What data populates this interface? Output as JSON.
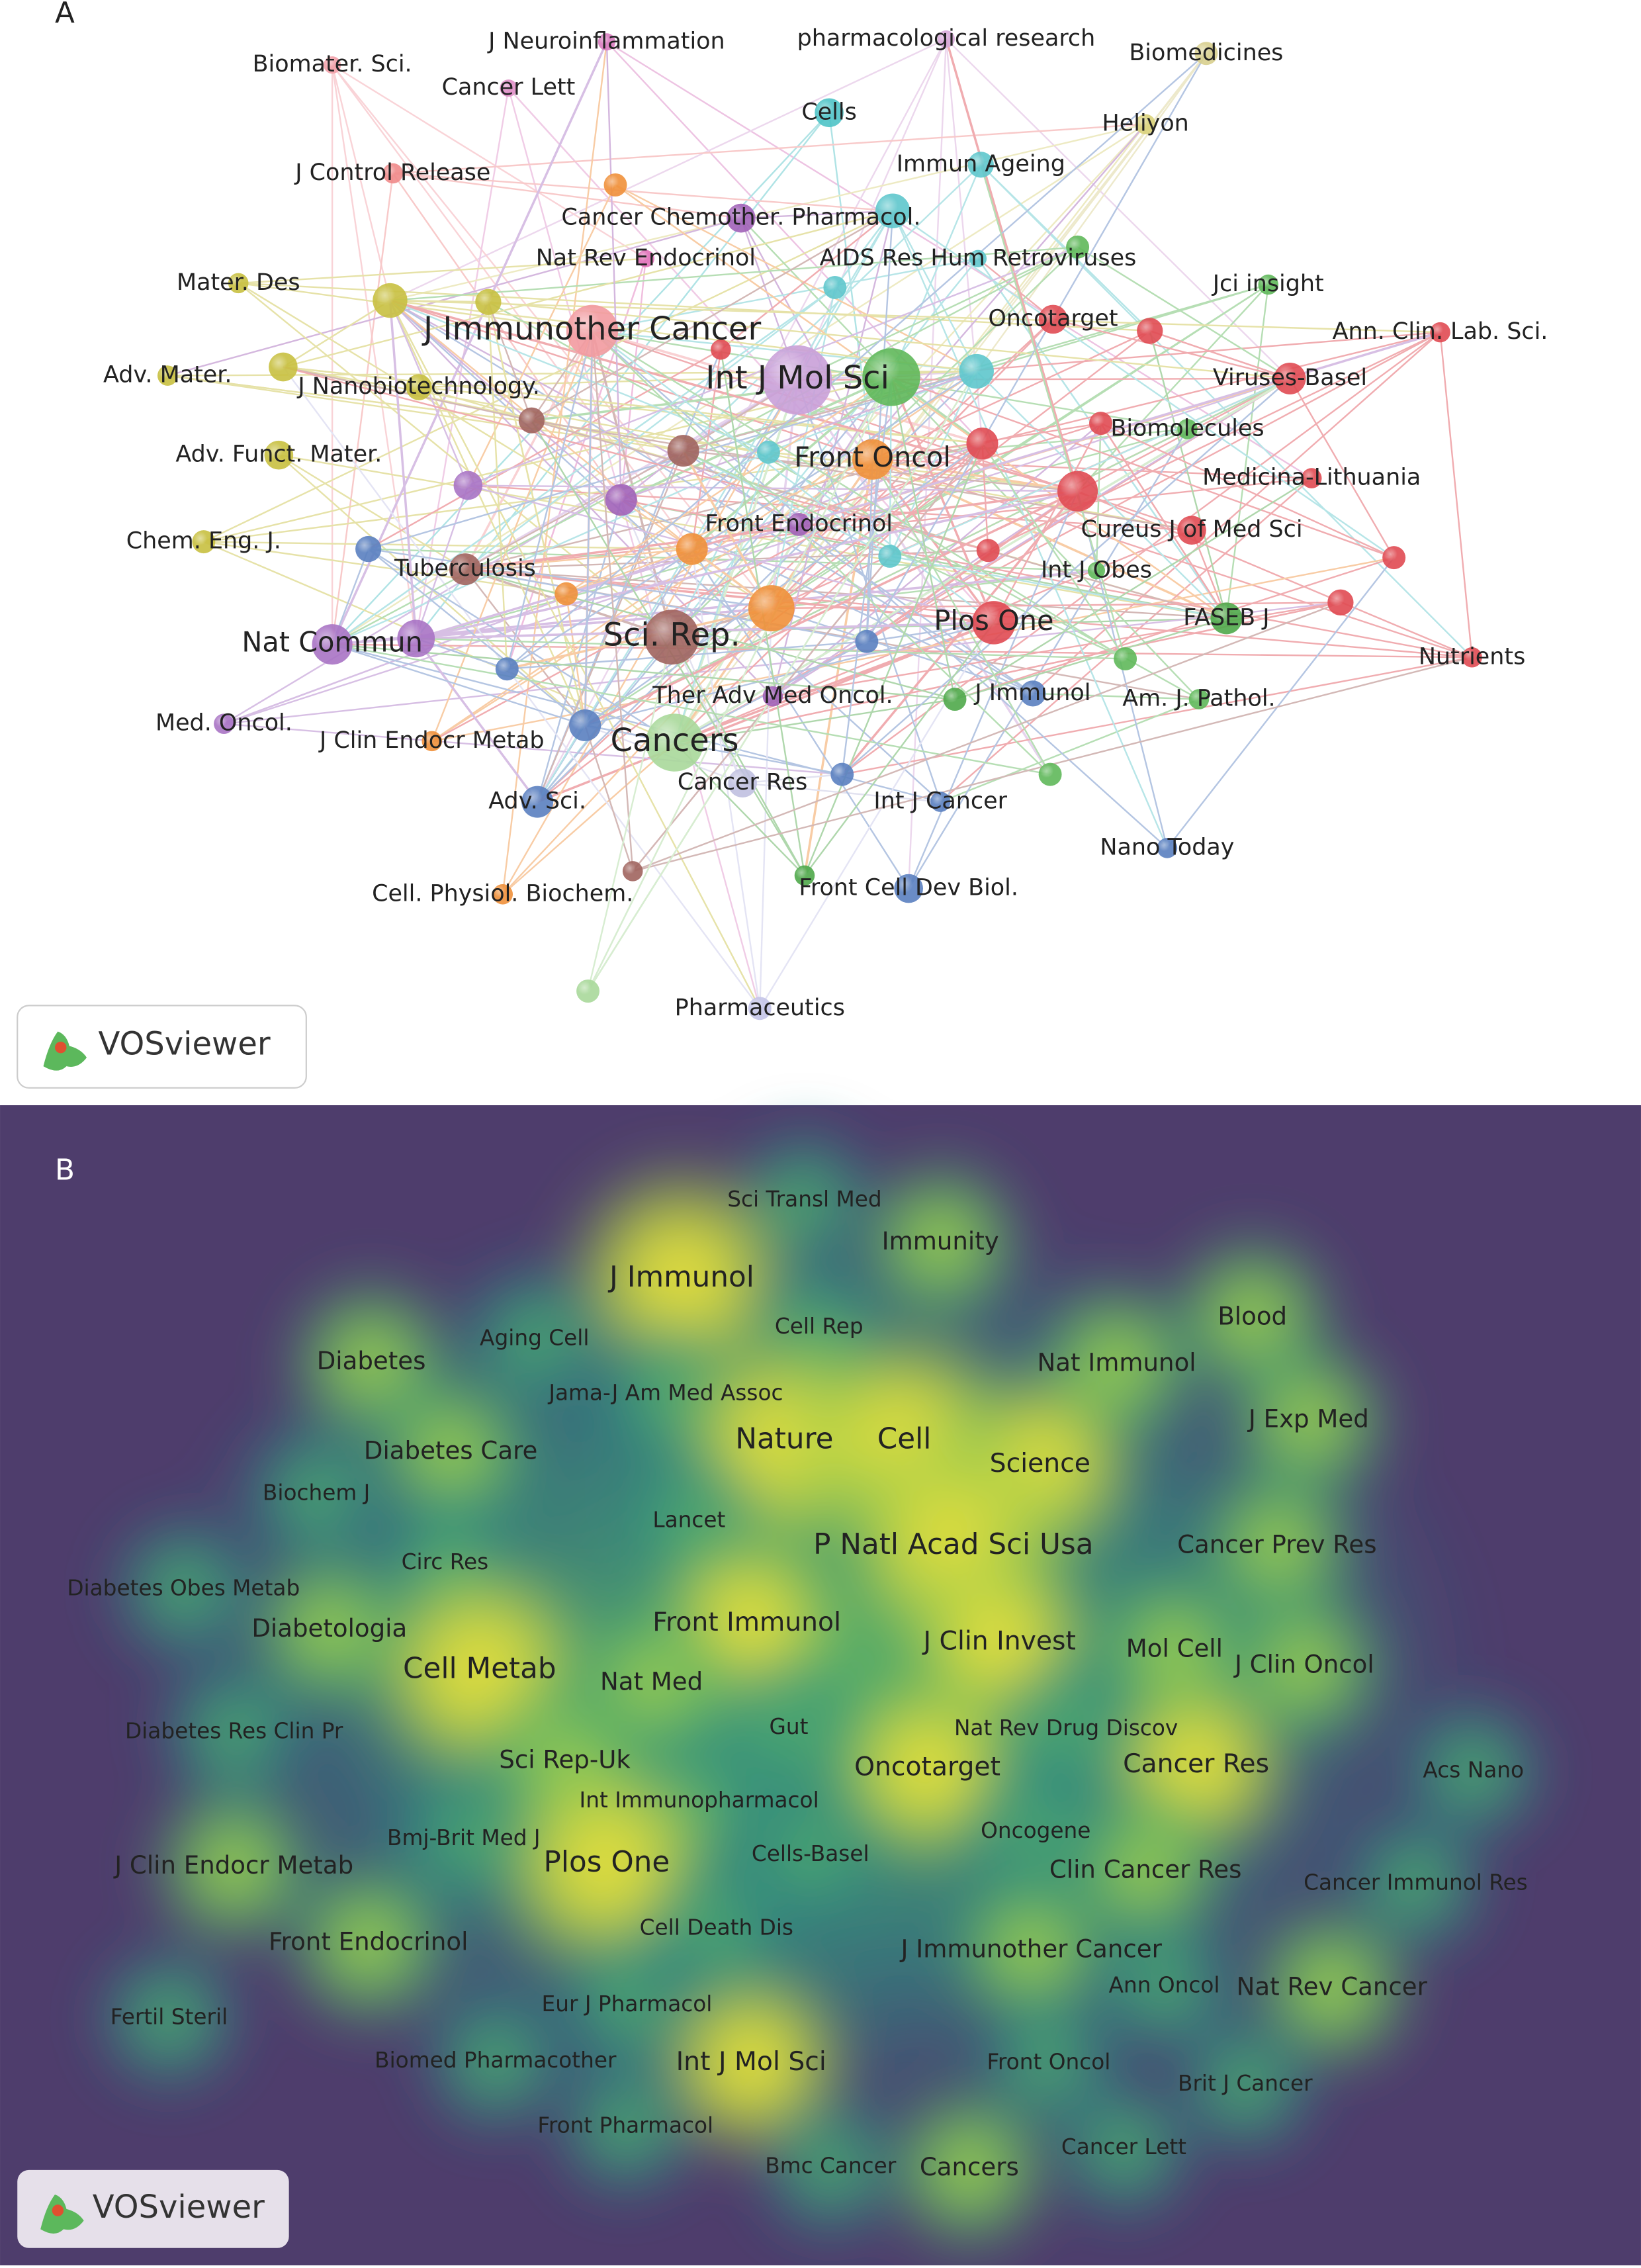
{
  "panel_a": {
    "label": "A",
    "logo": "VOSviewer",
    "nodes": [
      {
        "label": "J Neuroinflammation"
      },
      {
        "label": "pharmacological research"
      },
      {
        "label": "Biomater. Sci."
      },
      {
        "label": "Cancer Lett"
      },
      {
        "label": "Biomedicines"
      },
      {
        "label": "Cells"
      },
      {
        "label": "Heliyon"
      },
      {
        "label": "Immun Ageing"
      },
      {
        "label": "J Control Release"
      },
      {
        "label": "Cancer Chemother. Pharmacol."
      },
      {
        "label": "Nat Rev Endocrinol"
      },
      {
        "label": "AIDS Res Hum Retroviruses"
      },
      {
        "label": "Mater. Des"
      },
      {
        "label": "Jci insight"
      },
      {
        "label": "Oncotarget"
      },
      {
        "label": "Ann. Clin. Lab. Sci."
      },
      {
        "label": "J Immunother Cancer"
      },
      {
        "label": "Int J Mol Sci"
      },
      {
        "label": "Adv. Mater."
      },
      {
        "label": "J Nanobiotechnology."
      },
      {
        "label": "Viruses-Basel"
      },
      {
        "label": "Biomolecules"
      },
      {
        "label": "Adv. Funct. Mater."
      },
      {
        "label": "Front Oncol"
      },
      {
        "label": "Medicina-Lithuania"
      },
      {
        "label": "Front Endocrinol"
      },
      {
        "label": "Cureus J of Med Sci"
      },
      {
        "label": "Chem. Eng. J."
      },
      {
        "label": "Tuberculosis"
      },
      {
        "label": "Int J Obes"
      },
      {
        "label": "FASEB J"
      },
      {
        "label": "Plos One"
      },
      {
        "label": "Nat Commun"
      },
      {
        "label": "Sci. Rep."
      },
      {
        "label": "Nutrients"
      },
      {
        "label": "Ther Adv Med Oncol."
      },
      {
        "label": "J Immunol"
      },
      {
        "label": "Am. J. Pathol."
      },
      {
        "label": "Med. Oncol."
      },
      {
        "label": "J Clin Endocr Metab"
      },
      {
        "label": "Cancers"
      },
      {
        "label": "Cancer Res"
      },
      {
        "label": "Adv. Sci."
      },
      {
        "label": "Int J Cancer"
      },
      {
        "label": "Nano Today"
      },
      {
        "label": "Cell. Physiol. Biochem."
      },
      {
        "label": "Front Cell Dev Biol."
      },
      {
        "label": "Pharmaceutics"
      }
    ]
  },
  "panel_b": {
    "label": "B",
    "logo": "VOSviewer",
    "labels": [
      "Sci Transl Med",
      "Immunity",
      "J Immunol",
      "Cell Rep",
      "Blood",
      "Diabetes",
      "Aging Cell",
      "Nat Immunol",
      "Jama-J Am Med Assoc",
      "Nature",
      "Cell",
      "J Exp Med",
      "Diabetes Care",
      "Science",
      "Biochem J",
      "Lancet",
      "P Natl Acad Sci Usa",
      "Cancer Prev Res",
      "Circ Res",
      "Diabetes Obes Metab",
      "Front Immunol",
      "Diabetologia",
      "J Clin Invest",
      "Mol Cell",
      "J Clin Oncol",
      "Cell Metab",
      "Nat Med",
      "Diabetes Res Clin Pr",
      "Gut",
      "Nat Rev Drug Discov",
      "Sci Rep-Uk",
      "Oncotarget",
      "Cancer Res",
      "Acs Nano",
      "Int Immunopharmacol",
      "Bmj-Brit Med J",
      "Oncogene",
      "Cells-Basel",
      "Plos One",
      "J Clin Endocr Metab",
      "Clin Cancer Res",
      "Cancer Immunol Res",
      "Cell Death Dis",
      "Front Endocrinol",
      "J Immunother Cancer",
      "Ann Oncol",
      "Nat Rev Cancer",
      "Fertil Steril",
      "Eur J Pharmacol",
      "Biomed Pharmacother",
      "Int J Mol Sci",
      "Front Oncol",
      "Brit J Cancer",
      "Front Pharmacol",
      "Cancer Lett",
      "Bmc Cancer",
      "Cancers"
    ]
  }
}
